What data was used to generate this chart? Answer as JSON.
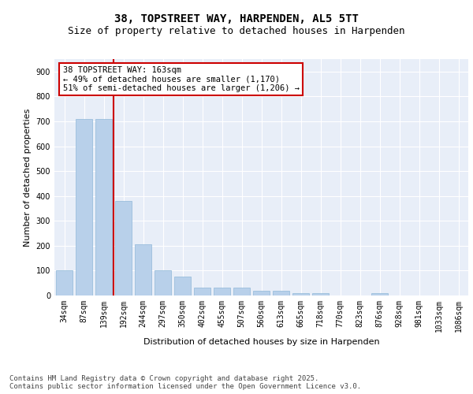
{
  "title_line1": "38, TOPSTREET WAY, HARPENDEN, AL5 5TT",
  "title_line2": "Size of property relative to detached houses in Harpenden",
  "xlabel": "Distribution of detached houses by size in Harpenden",
  "ylabel": "Number of detached properties",
  "categories": [
    "34sqm",
    "87sqm",
    "139sqm",
    "192sqm",
    "244sqm",
    "297sqm",
    "350sqm",
    "402sqm",
    "455sqm",
    "507sqm",
    "560sqm",
    "613sqm",
    "665sqm",
    "718sqm",
    "770sqm",
    "823sqm",
    "876sqm",
    "928sqm",
    "981sqm",
    "1033sqm",
    "1086sqm"
  ],
  "values": [
    100,
    710,
    710,
    380,
    205,
    100,
    75,
    32,
    33,
    33,
    18,
    18,
    8,
    8,
    0,
    0,
    8,
    0,
    0,
    0,
    0
  ],
  "bar_color": "#b8d0ea",
  "bar_edge_color": "#90b8d8",
  "vline_x_index": 2,
  "vline_color": "#cc0000",
  "annotation_text": "38 TOPSTREET WAY: 163sqm\n← 49% of detached houses are smaller (1,170)\n51% of semi-detached houses are larger (1,206) →",
  "annotation_box_color": "#ffffff",
  "annotation_box_edge": "#cc0000",
  "ylim": [
    0,
    950
  ],
  "yticks": [
    0,
    100,
    200,
    300,
    400,
    500,
    600,
    700,
    800,
    900
  ],
  "background_color": "#e8eef8",
  "grid_color": "#ffffff",
  "footer_text": "Contains HM Land Registry data © Crown copyright and database right 2025.\nContains public sector information licensed under the Open Government Licence v3.0.",
  "title_fontsize": 10,
  "subtitle_fontsize": 9,
  "axis_label_fontsize": 8,
  "tick_fontsize": 7,
  "annotation_fontsize": 7.5,
  "footer_fontsize": 6.5
}
